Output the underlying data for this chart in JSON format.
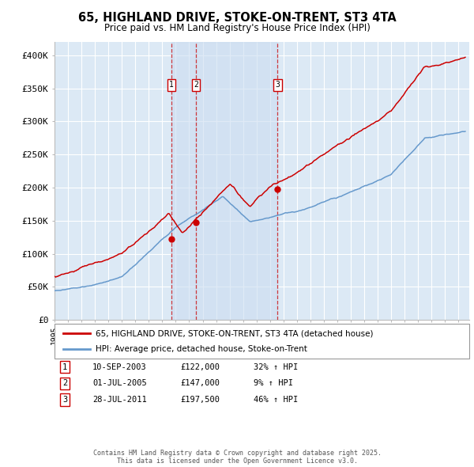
{
  "title": "65, HIGHLAND DRIVE, STOKE-ON-TRENT, ST3 4TA",
  "subtitle": "Price paid vs. HM Land Registry's House Price Index (HPI)",
  "legend_red": "65, HIGHLAND DRIVE, STOKE-ON-TRENT, ST3 4TA (detached house)",
  "legend_blue": "HPI: Average price, detached house, Stoke-on-Trent",
  "footer": "Contains HM Land Registry data © Crown copyright and database right 2025.\nThis data is licensed under the Open Government Licence v3.0.",
  "transactions": [
    {
      "num": 1,
      "date": "10-SEP-2003",
      "price": "£122,000",
      "change": "32% ↑ HPI",
      "year": 2003.69
    },
    {
      "num": 2,
      "date": "01-JUL-2005",
      "price": "£147,000",
      "change": "9% ↑ HPI",
      "year": 2005.5
    },
    {
      "num": 3,
      "date": "28-JUL-2011",
      "price": "£197,500",
      "change": "46% ↑ HPI",
      "year": 2011.57
    }
  ],
  "transaction_prices": [
    122000,
    147000,
    197500
  ],
  "ylim": [
    0,
    420000
  ],
  "xlim_start": 1995.0,
  "xlim_end": 2025.8,
  "yticks": [
    0,
    50000,
    100000,
    150000,
    200000,
    250000,
    300000,
    350000,
    400000
  ],
  "ytick_labels": [
    "£0",
    "£50K",
    "£100K",
    "£150K",
    "£200K",
    "£250K",
    "£300K",
    "£350K",
    "£400K"
  ],
  "background_color": "#dce9f5",
  "red_color": "#cc0000",
  "blue_color": "#6699cc",
  "grid_color": "#ffffff",
  "vline_color": "#cc0000",
  "band_color": "#ccddf0",
  "dot_color": "#cc0000"
}
